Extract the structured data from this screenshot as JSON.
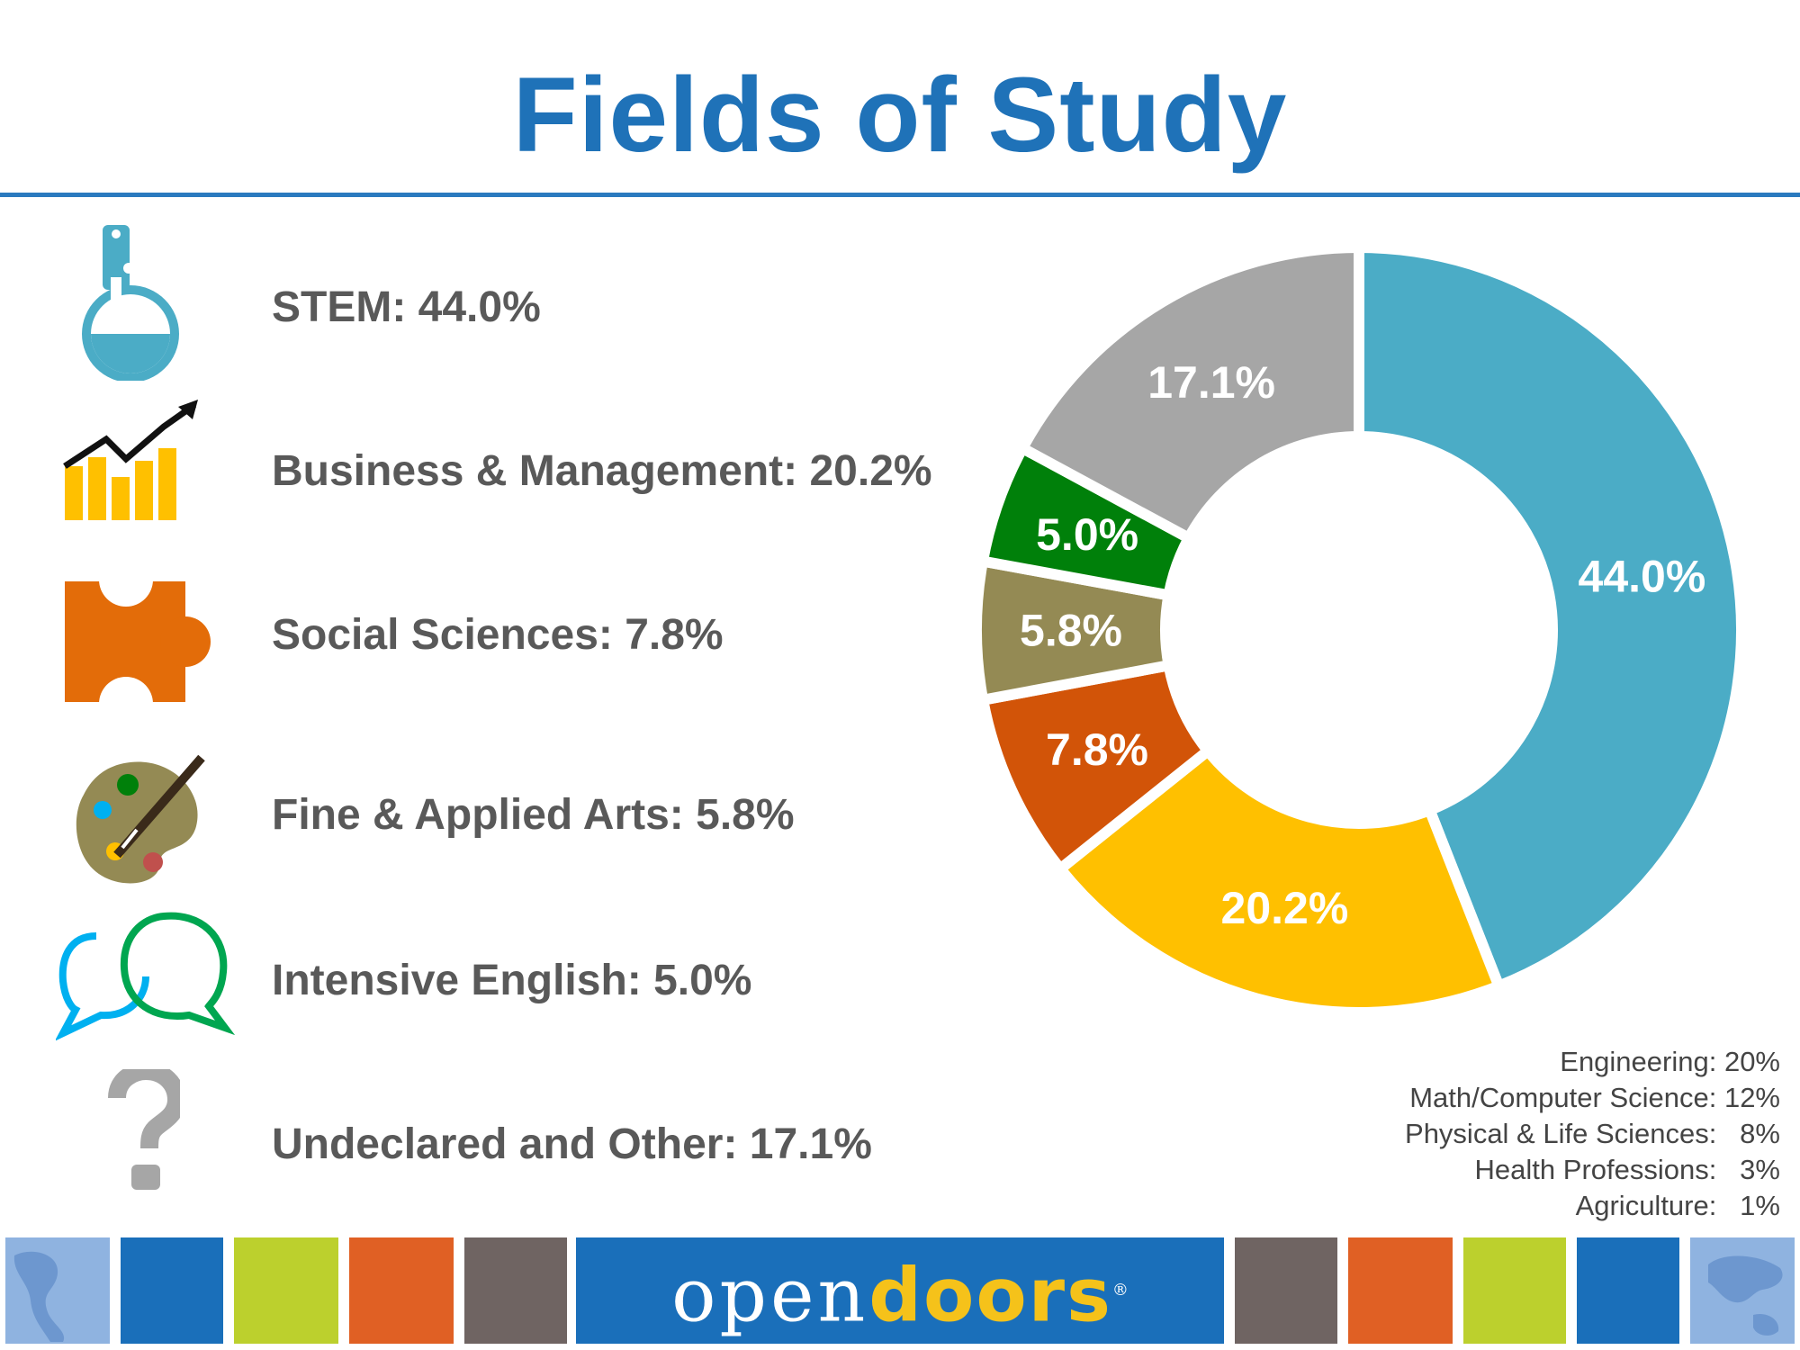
{
  "title": "Fields of Study",
  "fields": [
    {
      "label": "STEM:  44.0%",
      "icon": "flask-icon"
    },
    {
      "label": "Business & Management:  20.2%",
      "icon": "rising-chart-icon"
    },
    {
      "label": "Social Sciences:  7.8%",
      "icon": "puzzle-piece-icon"
    },
    {
      "label": "Fine & Applied Arts:  5.8%",
      "icon": "paint-palette-icon"
    },
    {
      "label": "Intensive English:  5.0%",
      "icon": "speech-bubbles-icon"
    },
    {
      "label": "Undeclared and Other: 17.1%",
      "icon": "question-mark-icon"
    }
  ],
  "chart_data": {
    "type": "pie",
    "style": "donut",
    "categories": [
      "STEM",
      "Business & Management",
      "Social Sciences",
      "Fine & Applied Arts",
      "Intensive English",
      "Undeclared and Other"
    ],
    "values": [
      44.0,
      20.2,
      7.8,
      5.8,
      5.0,
      17.1
    ],
    "data_labels": [
      "44.0%",
      "20.2%",
      "7.8%",
      "5.8%",
      "5.0%",
      "17.1%"
    ],
    "colors": [
      "#4bacc6",
      "#ffc000",
      "#d25408",
      "#948a54",
      "#00800a",
      "#a6a6a6"
    ],
    "start": "12 o'clock",
    "direction": "clockwise"
  },
  "stem_breakdown": [
    "Engineering: 20%",
    "Math/Computer Science: 12%",
    "Physical & Life Sciences:   8%",
    "Health Professions:   3%",
    "Agriculture:   1%"
  ],
  "footer": {
    "brand_open": "open",
    "brand_doors": "doors",
    "brand_reg": "®",
    "tile_colors": [
      "#1a6fba",
      "#bcd02d",
      "#e06024",
      "#6f6462",
      "#6f6462",
      "#e06024",
      "#bcd02d",
      "#1a6fba"
    ],
    "map_tile_color": "#8fb3e0"
  }
}
